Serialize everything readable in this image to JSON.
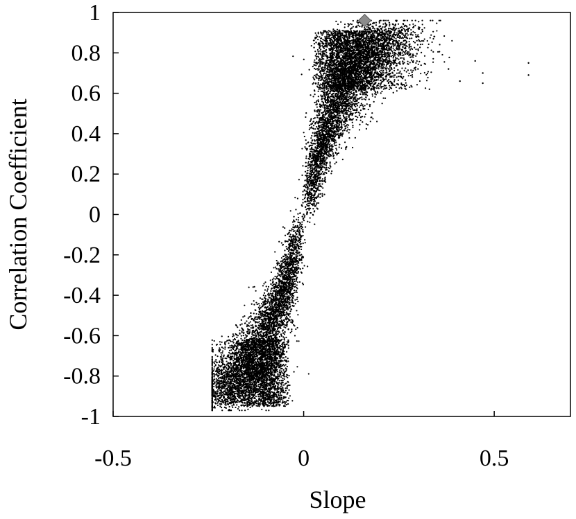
{
  "chart_data": {
    "type": "scatter",
    "title": "",
    "xlabel": "Slope",
    "ylabel": "Correlation Coefficient",
    "xlim": [
      -0.5,
      0.7
    ],
    "ylim": [
      -1,
      1
    ],
    "x_ticks": [
      -0.5,
      0,
      0.5
    ],
    "x_tick_labels": [
      "-0.5",
      "0",
      "0.5"
    ],
    "y_ticks": [
      -1,
      -0.8,
      -0.6,
      -0.4,
      -0.2,
      0,
      0.2,
      0.4,
      0.6,
      0.8,
      1
    ],
    "y_tick_labels": [
      "-1",
      "-0.8",
      "-0.6",
      "-0.4",
      "-0.2",
      "0",
      "0.2",
      "0.4",
      "0.6",
      "0.8",
      "1"
    ],
    "grid": false,
    "legend": "none",
    "series": [
      {
        "marker": "dot",
        "color": "#000000",
        "description_points": [
          [
            0.0,
            0.0
          ],
          [
            0.01,
            0.1
          ],
          [
            0.02,
            0.2
          ],
          [
            0.03,
            0.35
          ],
          [
            0.04,
            0.5
          ],
          [
            0.05,
            0.65
          ],
          [
            0.06,
            0.75
          ],
          [
            0.08,
            0.8
          ],
          [
            0.1,
            0.85
          ],
          [
            0.12,
            0.88
          ],
          [
            0.15,
            0.8
          ],
          [
            0.2,
            0.75
          ],
          [
            0.25,
            0.7
          ],
          [
            0.3,
            0.72
          ],
          [
            0.33,
            0.62
          ],
          [
            0.38,
            0.72
          ],
          [
            0.41,
            0.66
          ],
          [
            0.45,
            0.76
          ],
          [
            0.47,
            0.65
          ],
          [
            0.47,
            0.7
          ],
          [
            0.59,
            0.75
          ],
          [
            0.59,
            0.69
          ],
          [
            -0.01,
            -0.1
          ],
          [
            -0.02,
            -0.2
          ],
          [
            -0.03,
            -0.35
          ],
          [
            -0.05,
            -0.5
          ],
          [
            -0.07,
            -0.65
          ],
          [
            -0.09,
            -0.75
          ],
          [
            -0.11,
            -0.8
          ],
          [
            -0.13,
            -0.85
          ],
          [
            -0.16,
            -0.88
          ],
          [
            -0.2,
            -0.8
          ],
          [
            -0.23,
            -0.72
          ],
          [
            -0.21,
            -0.9
          ]
        ]
      },
      {
        "marker": "diamond",
        "color": "#8c8c8c",
        "points": [
          [
            0.16,
            0.96
          ]
        ]
      }
    ]
  }
}
